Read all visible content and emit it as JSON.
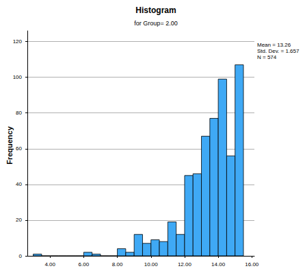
{
  "chart_data": {
    "type": "histogram",
    "title": "Histogram",
    "subtitle": "for Group= 2.00",
    "y_label": "Frequency",
    "annotations": [
      "Mean = 13.26",
      "Std. Dev. = 1.657",
      "N = 574"
    ],
    "bins": [
      3.0,
      3.5,
      4.0,
      4.5,
      5.0,
      5.5,
      6.0,
      6.5,
      7.0,
      7.5,
      8.0,
      8.5,
      9.0,
      9.5,
      10.0,
      10.5,
      11.0,
      11.5,
      12.0,
      12.5,
      13.0,
      13.5,
      14.0,
      14.5,
      15.0,
      15.5
    ],
    "values": [
      1,
      0,
      0,
      0,
      0,
      0,
      2,
      1,
      0,
      0,
      4,
      2,
      12,
      7,
      9,
      8,
      19,
      12,
      45,
      46,
      67,
      77,
      99,
      56,
      107
    ],
    "color": "#3fa9f5",
    "xlim": [
      2.65,
      16.15
    ],
    "xticks": [
      {
        "value": 4,
        "label": "4.00"
      },
      {
        "value": 6,
        "label": "6.00"
      },
      {
        "value": 8,
        "label": "8.00"
      },
      {
        "value": 10,
        "label": "10.00"
      },
      {
        "value": 12,
        "label": "12.00"
      },
      {
        "value": 14,
        "label": "14.00"
      },
      {
        "value": 16,
        "label": "16.00"
      }
    ],
    "ylim": [
      0,
      126
    ],
    "yticks": [
      0,
      20,
      40,
      60,
      80,
      100,
      120
    ],
    "grid": true
  }
}
